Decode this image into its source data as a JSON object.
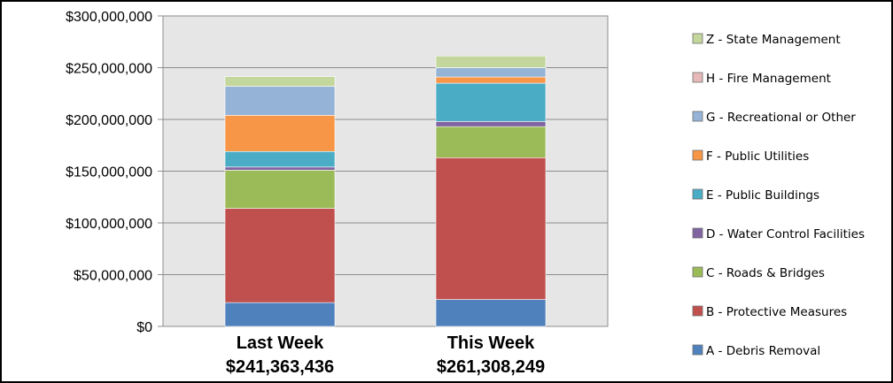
{
  "chart_data": {
    "type": "bar",
    "stacked": true,
    "categories": [
      "Last Week",
      "This Week"
    ],
    "category_totals": [
      "$241,363,436",
      "$261,308,249"
    ],
    "ylim": [
      0,
      300000000
    ],
    "yticks": [
      0,
      50000000,
      100000000,
      150000000,
      200000000,
      250000000,
      300000000
    ],
    "ytick_labels": [
      "$0",
      "$50,000,000",
      "$100,000,000",
      "$150,000,000",
      "$200,000,000",
      "$250,000,000",
      "$300,000,000"
    ],
    "grid": true,
    "legend_position": "right",
    "series": [
      {
        "name": "A - Debris Removal",
        "color": "#4F81BD",
        "values": [
          23000000,
          26000000
        ]
      },
      {
        "name": "B - Protective Measures",
        "color": "#C0504D",
        "values": [
          91000000,
          137000000
        ]
      },
      {
        "name": "C - Roads & Bridges",
        "color": "#9BBB59",
        "values": [
          37000000,
          30000000
        ]
      },
      {
        "name": "D - Water Control Facilities",
        "color": "#8064A2",
        "values": [
          3000000,
          5000000
        ]
      },
      {
        "name": "E - Public Buildings",
        "color": "#4BACC6",
        "values": [
          15000000,
          37000000
        ]
      },
      {
        "name": "F - Public Utilities",
        "color": "#F79646",
        "values": [
          35000000,
          6000000
        ]
      },
      {
        "name": "G - Recreational or Other",
        "color": "#95B3D7",
        "values": [
          28000000,
          9000000
        ]
      },
      {
        "name": "H - Fire Management",
        "color": "#E6B9B8",
        "values": [
          0,
          0
        ]
      },
      {
        "name": "Z - State Management",
        "color": "#C3D69B",
        "values": [
          9363436,
          11308249
        ]
      }
    ]
  }
}
